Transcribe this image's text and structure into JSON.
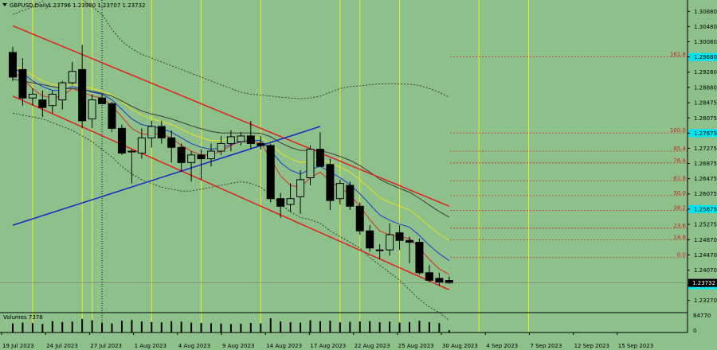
{
  "chart_data": {
    "type": "candlestick",
    "header": {
      "symbol_label": "GBPUSD,Daily",
      "ohlc_text": "1.23796 1.23900 1.23707 1.23732"
    },
    "price_axis": {
      "ticks": [
        "1.30880",
        "1.30480",
        "1.30080",
        "1.29680",
        "1.29280",
        "1.28880",
        "1.28475",
        "1.28075",
        "1.27675",
        "1.27275",
        "1.26875",
        "1.26475",
        "1.26075",
        "1.25675",
        "1.25275",
        "1.24870",
        "1.24470",
        "1.24070",
        "1.23670",
        "1.23270"
      ],
      "highlighted_ticks": [
        "1.29680",
        "1.27675",
        "1.25675",
        "1.23670"
      ],
      "highlight_color": "#00e5f0",
      "last_price": "1.23732",
      "range": [
        1.2297,
        1.3118
      ]
    },
    "date_axis": [
      "19 Jul 2023",
      "24 Jul 2023",
      "27 Jul 2023",
      "1 Aug 2023",
      "4 Aug 2023",
      "9 Aug 2023",
      "14 Aug 2023",
      "17 Aug 2023",
      "22 Aug 2023",
      "25 Aug 2023",
      "30 Aug 2023",
      "4 Sep 2023",
      "7 Sep 2023",
      "12 Sep 2023",
      "15 Sep 2023"
    ],
    "candles": [
      {
        "o": 1.298,
        "h": 1.2995,
        "l": 1.2905,
        "c": 1.2915
      },
      {
        "o": 1.2935,
        "h": 1.2965,
        "l": 1.284,
        "c": 1.286
      },
      {
        "o": 1.286,
        "h": 1.2885,
        "l": 1.284,
        "c": 1.287
      },
      {
        "o": 1.2855,
        "h": 1.288,
        "l": 1.281,
        "c": 1.2835
      },
      {
        "o": 1.284,
        "h": 1.288,
        "l": 1.282,
        "c": 1.287
      },
      {
        "o": 1.2855,
        "h": 1.2905,
        "l": 1.283,
        "c": 1.29
      },
      {
        "o": 1.29,
        "h": 1.2955,
        "l": 1.2895,
        "c": 1.293
      },
      {
        "o": 1.2935,
        "h": 1.3,
        "l": 1.278,
        "c": 1.28
      },
      {
        "o": 1.2805,
        "h": 1.287,
        "l": 1.278,
        "c": 1.2855
      },
      {
        "o": 1.286,
        "h": 1.287,
        "l": 1.2845,
        "c": 1.2845
      },
      {
        "o": 1.2845,
        "h": 1.285,
        "l": 1.277,
        "c": 1.278
      },
      {
        "o": 1.278,
        "h": 1.279,
        "l": 1.271,
        "c": 1.2715
      },
      {
        "o": 1.272,
        "h": 1.2725,
        "l": 1.2635,
        "c": 1.2718
      },
      {
        "o": 1.2715,
        "h": 1.278,
        "l": 1.27,
        "c": 1.2755
      },
      {
        "o": 1.2755,
        "h": 1.28,
        "l": 1.273,
        "c": 1.2785
      },
      {
        "o": 1.2785,
        "h": 1.28,
        "l": 1.274,
        "c": 1.2755
      },
      {
        "o": 1.2755,
        "h": 1.2775,
        "l": 1.269,
        "c": 1.273
      },
      {
        "o": 1.273,
        "h": 1.274,
        "l": 1.2665,
        "c": 1.269
      },
      {
        "o": 1.269,
        "h": 1.272,
        "l": 1.264,
        "c": 1.271
      },
      {
        "o": 1.271,
        "h": 1.2725,
        "l": 1.2645,
        "c": 1.27
      },
      {
        "o": 1.27,
        "h": 1.274,
        "l": 1.268,
        "c": 1.272
      },
      {
        "o": 1.272,
        "h": 1.276,
        "l": 1.271,
        "c": 1.274
      },
      {
        "o": 1.274,
        "h": 1.2775,
        "l": 1.272,
        "c": 1.2758
      },
      {
        "o": 1.2745,
        "h": 1.277,
        "l": 1.2735,
        "c": 1.276
      },
      {
        "o": 1.276,
        "h": 1.28,
        "l": 1.2725,
        "c": 1.274
      },
      {
        "o": 1.274,
        "h": 1.276,
        "l": 1.2725,
        "c": 1.2735
      },
      {
        "o": 1.2735,
        "h": 1.274,
        "l": 1.2585,
        "c": 1.2595
      },
      {
        "o": 1.2595,
        "h": 1.261,
        "l": 1.2545,
        "c": 1.2575
      },
      {
        "o": 1.258,
        "h": 1.2635,
        "l": 1.256,
        "c": 1.2595
      },
      {
        "o": 1.26,
        "h": 1.267,
        "l": 1.2555,
        "c": 1.2645
      },
      {
        "o": 1.265,
        "h": 1.2735,
        "l": 1.263,
        "c": 1.2725
      },
      {
        "o": 1.2725,
        "h": 1.277,
        "l": 1.268,
        "c": 1.268
      },
      {
        "o": 1.2685,
        "h": 1.27,
        "l": 1.2565,
        "c": 1.259
      },
      {
        "o": 1.2595,
        "h": 1.2645,
        "l": 1.258,
        "c": 1.2635
      },
      {
        "o": 1.263,
        "h": 1.264,
        "l": 1.2565,
        "c": 1.2575
      },
      {
        "o": 1.2575,
        "h": 1.2585,
        "l": 1.25,
        "c": 1.251
      },
      {
        "o": 1.251,
        "h": 1.2525,
        "l": 1.2455,
        "c": 1.2465
      },
      {
        "o": 1.246,
        "h": 1.2475,
        "l": 1.2435,
        "c": 1.246
      },
      {
        "o": 1.246,
        "h": 1.253,
        "l": 1.2445,
        "c": 1.25
      },
      {
        "o": 1.2505,
        "h": 1.2525,
        "l": 1.246,
        "c": 1.2485
      },
      {
        "o": 1.2485,
        "h": 1.2495,
        "l": 1.2425,
        "c": 1.248
      },
      {
        "o": 1.248,
        "h": 1.249,
        "l": 1.2395,
        "c": 1.24
      },
      {
        "o": 1.24,
        "h": 1.242,
        "l": 1.2375,
        "c": 1.238
      },
      {
        "o": 1.2385,
        "h": 1.24,
        "l": 1.2365,
        "c": 1.2375
      },
      {
        "o": 1.23796,
        "h": 1.239,
        "l": 1.23707,
        "c": 1.23732
      }
    ],
    "moving_averages": [
      {
        "name": "",
        "color": "#d83020",
        "values": [
          1.293,
          1.291,
          1.2885,
          1.2865,
          1.286,
          1.2865,
          1.2885,
          1.2875,
          1.2865,
          1.286,
          1.284,
          1.281,
          1.278,
          1.2765,
          1.2765,
          1.2765,
          1.2755,
          1.2735,
          1.272,
          1.271,
          1.271,
          1.272,
          1.2735,
          1.2745,
          1.2745,
          1.2742,
          1.27,
          1.2655,
          1.263,
          1.2625,
          1.265,
          1.2665,
          1.264,
          1.2625,
          1.2605,
          1.2575,
          1.254,
          1.251,
          1.25,
          1.2495,
          1.249,
          1.2465,
          1.2435,
          1.241,
          1.2395
        ]
      },
      {
        "name": "",
        "color": "#1a3cd0",
        "values": [
          1.294,
          1.2925,
          1.2905,
          1.289,
          1.288,
          1.288,
          1.289,
          1.2885,
          1.2875,
          1.287,
          1.2855,
          1.283,
          1.2805,
          1.279,
          1.2785,
          1.278,
          1.277,
          1.2755,
          1.274,
          1.273,
          1.2725,
          1.2728,
          1.2738,
          1.2745,
          1.2748,
          1.2748,
          1.2722,
          1.269,
          1.267,
          1.266,
          1.2672,
          1.268,
          1.2665,
          1.265,
          1.2632,
          1.2608,
          1.258,
          1.2552,
          1.2538,
          1.2528,
          1.252,
          1.2498,
          1.2472,
          1.245,
          1.2432
        ]
      },
      {
        "name": "",
        "color": "#e8e020",
        "values": [
          1.2945,
          1.2935,
          1.292,
          1.2905,
          1.2895,
          1.2892,
          1.2895,
          1.2892,
          1.2885,
          1.2878,
          1.2868,
          1.285,
          1.283,
          1.2815,
          1.2805,
          1.2798,
          1.279,
          1.2778,
          1.2765,
          1.2755,
          1.2748,
          1.2748,
          1.2752,
          1.2755,
          1.2756,
          1.2756,
          1.274,
          1.2715,
          1.27,
          1.269,
          1.2695,
          1.27,
          1.269,
          1.2678,
          1.2665,
          1.2645,
          1.2622,
          1.2598,
          1.2585,
          1.2575,
          1.2565,
          1.2545,
          1.2522,
          1.2502,
          1.2485
        ]
      },
      {
        "name": "",
        "color": "#3a3a3a",
        "values": [
          1.291,
          1.2905,
          1.29,
          1.2895,
          1.289,
          1.2885,
          1.2885,
          1.2882,
          1.2878,
          1.2872,
          1.2865,
          1.2852,
          1.2838,
          1.2826,
          1.2818,
          1.2812,
          1.2805,
          1.2796,
          1.2787,
          1.2779,
          1.2772,
          1.2768,
          1.2768,
          1.2768,
          1.2768,
          1.2767,
          1.2758,
          1.2742,
          1.273,
          1.2722,
          1.2722,
          1.2722,
          1.2715,
          1.2706,
          1.2696,
          1.2682,
          1.2665,
          1.2646,
          1.2633,
          1.2622,
          1.2612,
          1.2596,
          1.2578,
          1.2561,
          1.2546
        ]
      }
    ],
    "bollinger": {
      "upper": [
        1.308,
        1.309,
        1.31,
        1.3115,
        1.313,
        1.314,
        1.3135,
        1.312,
        1.31,
        1.308,
        1.304,
        1.301,
        1.299,
        1.2975,
        1.2965,
        1.2955,
        1.2945,
        1.2935,
        1.2925,
        1.2915,
        1.2905,
        1.2895,
        1.2885,
        1.2875,
        1.287,
        1.2868,
        1.2865,
        1.2862,
        1.286,
        1.2858,
        1.286,
        1.2865,
        1.2875,
        1.2885,
        1.289,
        1.2892,
        1.2895,
        1.2897,
        1.2898,
        1.2897,
        1.2896,
        1.2893,
        1.2885,
        1.2875,
        1.2862
      ],
      "lower": [
        1.282,
        1.2815,
        1.281,
        1.2805,
        1.2795,
        1.2785,
        1.2775,
        1.276,
        1.2745,
        1.2725,
        1.2705,
        1.268,
        1.266,
        1.2645,
        1.2635,
        1.2625,
        1.262,
        1.2615,
        1.2615,
        1.262,
        1.2625,
        1.263,
        1.2635,
        1.264,
        1.2635,
        1.2625,
        1.2605,
        1.258,
        1.256,
        1.2545,
        1.254,
        1.253,
        1.251,
        1.2495,
        1.248,
        1.2465,
        1.244,
        1.242,
        1.24,
        1.238,
        1.2355,
        1.233,
        1.231,
        1.2295,
        1.2275
      ]
    },
    "trend_lines": [
      {
        "color": "#e02020",
        "from": {
          "bar": 0,
          "price": 1.305
        },
        "to": {
          "bar": 44,
          "price": 1.2575
        }
      },
      {
        "color": "#e02020",
        "from": {
          "bar": 0,
          "price": 1.2865
        },
        "to": {
          "bar": 44,
          "price": 1.2355
        }
      },
      {
        "color": "#1428c8",
        "from": {
          "bar": 0,
          "price": 1.2525
        },
        "to": {
          "bar": 31,
          "price": 1.2785
        }
      }
    ],
    "fibonacci_levels": [
      {
        "label": "161.8",
        "price": 1.2968
      },
      {
        "label": "100.0",
        "price": 1.2768
      },
      {
        "label": "85.4",
        "price": 1.272
      },
      {
        "label": "76.4",
        "price": 1.2689
      },
      {
        "label": "61.8",
        "price": 1.2642
      },
      {
        "label": "50.0",
        "price": 1.2603
      },
      {
        "label": "38.2",
        "price": 1.2564
      },
      {
        "label": "23.6",
        "price": 1.2517
      },
      {
        "label": "14.6",
        "price": 1.2487
      },
      {
        "label": "0.0",
        "price": 1.244
      }
    ],
    "vertical_marker_bars": [
      2,
      7,
      8,
      14,
      19,
      25,
      33,
      35,
      39,
      47,
      52
    ],
    "dotted_marker_bar": 9,
    "volume": {
      "label": "Volumes 7378",
      "scale_ticks": [
        "84770",
        "0"
      ],
      "values": [
        48,
        52,
        50,
        45,
        60,
        55,
        58,
        72,
        65,
        50,
        48,
        62,
        66,
        58,
        55,
        54,
        60,
        57,
        52,
        50,
        49,
        47,
        45,
        46,
        50,
        48,
        75,
        58,
        54,
        52,
        65,
        60,
        62,
        54,
        56,
        58,
        60,
        54,
        57,
        52,
        55,
        62,
        55,
        50,
        12
      ]
    }
  }
}
